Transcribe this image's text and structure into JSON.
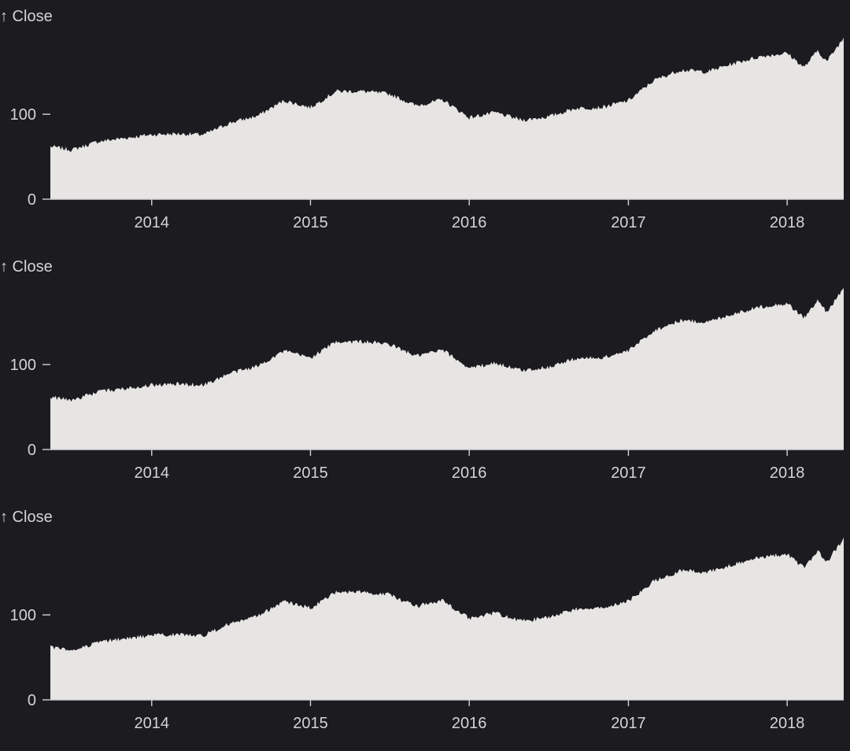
{
  "colors": {
    "background": "#1c1b20",
    "area": "#e6e5e3",
    "text": "#d4d3d7"
  },
  "chart_data": [
    {
      "type": "area",
      "ylabel": "↑ Close",
      "x_domain": [
        "2013-05-13",
        "2018-05-11"
      ],
      "y_domain": [
        0,
        190
      ],
      "x_ticks": [
        "2014",
        "2015",
        "2016",
        "2017",
        "2018"
      ],
      "y_ticks": [
        0,
        100
      ],
      "x": [
        "2013-05-13",
        "2013-07-01",
        "2013-09-01",
        "2013-11-01",
        "2014-01-01",
        "2014-03-01",
        "2014-05-01",
        "2014-07-01",
        "2014-09-01",
        "2014-11-01",
        "2015-01-01",
        "2015-03-01",
        "2015-05-01",
        "2015-07-01",
        "2015-09-01",
        "2015-11-01",
        "2016-01-01",
        "2016-03-01",
        "2016-05-01",
        "2016-07-01",
        "2016-09-01",
        "2016-11-01",
        "2017-01-01",
        "2017-03-01",
        "2017-05-01",
        "2017-07-01",
        "2017-09-01",
        "2017-11-01",
        "2018-01-01",
        "2018-02-09",
        "2018-03-12",
        "2018-04-02",
        "2018-05-11"
      ],
      "series": [
        {
          "values": [
            62,
            58,
            68,
            72,
            76,
            77,
            76,
            90,
            98,
            116,
            108,
            127,
            127,
            124,
            110,
            117,
            96,
            102,
            93,
            97,
            107,
            108,
            116,
            140,
            152,
            150,
            160,
            168,
            172,
            155,
            175,
            162,
            190
          ]
        }
      ]
    },
    {
      "type": "area",
      "ylabel": "↑ Close",
      "x_domain": [
        "2013-05-13",
        "2018-05-11"
      ],
      "y_domain": [
        0,
        190
      ],
      "x_ticks": [
        "2014",
        "2015",
        "2016",
        "2017",
        "2018"
      ],
      "y_ticks": [
        0,
        100
      ],
      "x": [
        "2013-05-13",
        "2013-07-01",
        "2013-09-01",
        "2013-11-01",
        "2014-01-01",
        "2014-03-01",
        "2014-05-01",
        "2014-07-01",
        "2014-09-01",
        "2014-11-01",
        "2015-01-01",
        "2015-03-01",
        "2015-05-01",
        "2015-07-01",
        "2015-09-01",
        "2015-11-01",
        "2016-01-01",
        "2016-03-01",
        "2016-05-01",
        "2016-07-01",
        "2016-09-01",
        "2016-11-01",
        "2017-01-01",
        "2017-03-01",
        "2017-05-01",
        "2017-07-01",
        "2017-09-01",
        "2017-11-01",
        "2018-01-01",
        "2018-02-09",
        "2018-03-12",
        "2018-04-02",
        "2018-05-11"
      ],
      "series": [
        {
          "values": [
            62,
            58,
            68,
            72,
            76,
            77,
            76,
            90,
            98,
            116,
            108,
            127,
            127,
            124,
            110,
            117,
            96,
            102,
            93,
            97,
            107,
            108,
            116,
            140,
            152,
            150,
            160,
            168,
            172,
            155,
            175,
            162,
            190
          ]
        }
      ]
    },
    {
      "type": "area",
      "ylabel": "↑ Close",
      "x_domain": [
        "2013-05-13",
        "2018-05-11"
      ],
      "y_domain": [
        0,
        190
      ],
      "x_ticks": [
        "2014",
        "2015",
        "2016",
        "2017",
        "2018"
      ],
      "y_ticks": [
        0,
        100
      ],
      "x": [
        "2013-05-13",
        "2013-07-01",
        "2013-09-01",
        "2013-11-01",
        "2014-01-01",
        "2014-03-01",
        "2014-05-01",
        "2014-07-01",
        "2014-09-01",
        "2014-11-01",
        "2015-01-01",
        "2015-03-01",
        "2015-05-01",
        "2015-07-01",
        "2015-09-01",
        "2015-11-01",
        "2016-01-01",
        "2016-03-01",
        "2016-05-01",
        "2016-07-01",
        "2016-09-01",
        "2016-11-01",
        "2017-01-01",
        "2017-03-01",
        "2017-05-01",
        "2017-07-01",
        "2017-09-01",
        "2017-11-01",
        "2018-01-01",
        "2018-02-09",
        "2018-03-12",
        "2018-04-02",
        "2018-05-11"
      ],
      "series": [
        {
          "values": [
            62,
            58,
            68,
            72,
            76,
            77,
            76,
            90,
            98,
            116,
            108,
            127,
            127,
            124,
            110,
            117,
            96,
            102,
            93,
            97,
            107,
            108,
            116,
            140,
            152,
            150,
            160,
            168,
            172,
            155,
            175,
            162,
            190
          ]
        }
      ]
    }
  ]
}
